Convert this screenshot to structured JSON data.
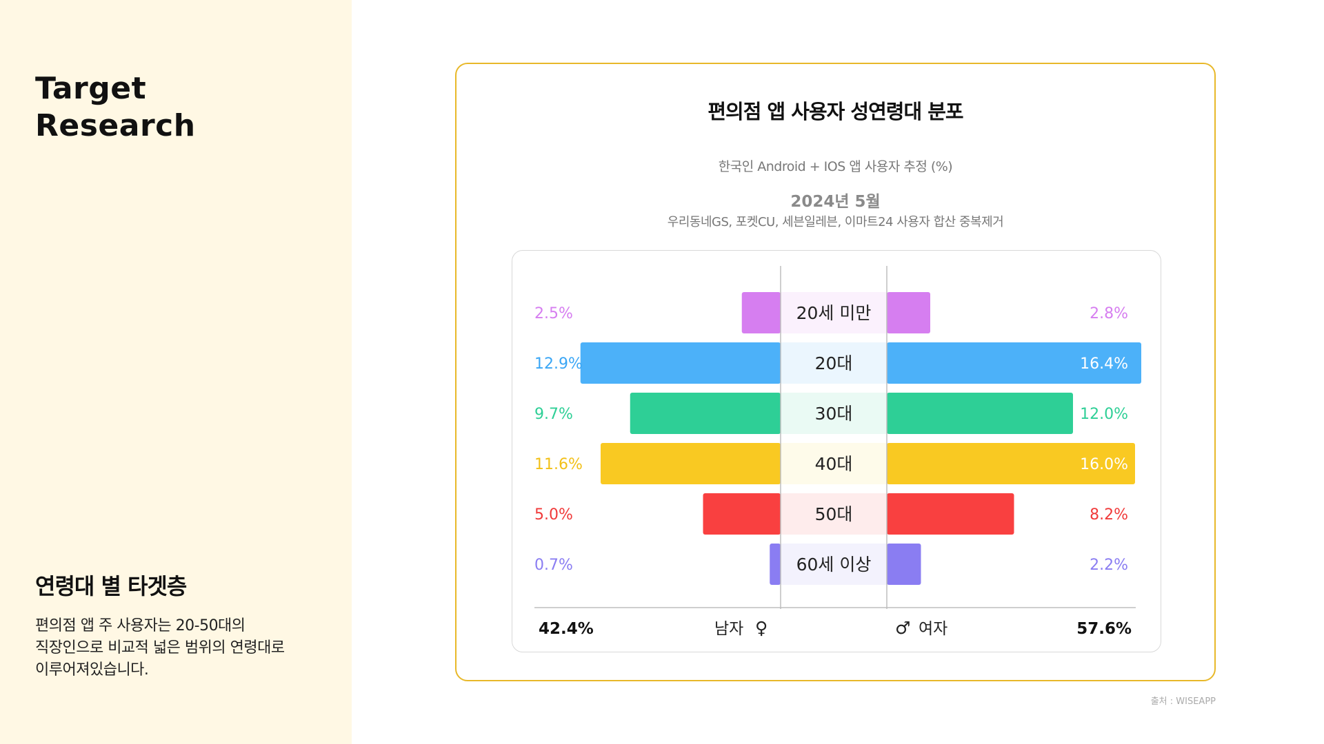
{
  "sidebar": {
    "brand_line1": "Target",
    "brand_line2": "Research",
    "heading": "연령대 별 타겟층",
    "desc_lines": [
      "편의점 앱 주 사용자는 20-50대의",
      "직장인으로 비교적 넓은 범위의 연령대로",
      "이루어져있습니다."
    ]
  },
  "card": {
    "title": "편의점 앱 사용자 성연령대 분포",
    "subtitle": "한국인 Android + IOS  앱 사용자 추정 (%)",
    "date": "2024년 5월",
    "source_list": "우리동네GS, 포켓CU, 세븐일레븐, 이마트24 사용자 합산 중복제거"
  },
  "credit": "출처 : WISEAPP",
  "chart_data": {
    "type": "bar",
    "orientation": "horizontal-pyramid",
    "categories": [
      "20세 미만",
      "20대",
      "30대",
      "40대",
      "50대",
      "60세 이상"
    ],
    "series": [
      {
        "name": "남자",
        "symbol": "♀",
        "total": "42.4%",
        "values": [
          2.5,
          12.9,
          9.7,
          11.6,
          5.0,
          0.7
        ],
        "labels": [
          "2.5%",
          "12.9%",
          "9.7%",
          "11.6%",
          "5.0%",
          "0.7%"
        ]
      },
      {
        "name": "여자",
        "symbol": "♂",
        "total": "57.6%",
        "values": [
          2.8,
          16.4,
          12.0,
          16.0,
          8.2,
          2.2
        ],
        "labels": [
          "2.8%",
          "16.4%",
          "12.0%",
          "16.0%",
          "8.2%",
          "2.2%"
        ]
      }
    ],
    "colors": [
      "#d67ef0",
      "#4cb1f9",
      "#2ecf96",
      "#f9c922",
      "#f94040",
      "#8a7df2"
    ],
    "center_bg": [
      "#fbf1fd",
      "#ebf6fe",
      "#eafaf4",
      "#fefbea",
      "#feecec",
      "#f3f2fd"
    ],
    "label_colors": [
      "#d67ef0",
      "#3aa6f5",
      "#2ecf96",
      "#f2c018",
      "#f03a3a",
      "#8a7df2"
    ],
    "inside_label_rows_female": [
      1,
      3
    ],
    "xmax": 16.4
  }
}
